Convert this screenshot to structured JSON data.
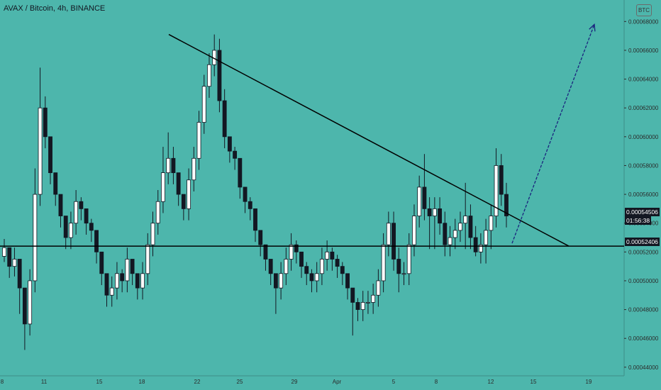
{
  "header": {
    "title": "AVAX / Bitcoin, 4h, BINANCE",
    "currency": "BTC"
  },
  "price_badges": {
    "current_price": "0.00054506",
    "countdown": "01:56:38",
    "support_price": "0.00052406"
  },
  "colors": {
    "background": "#4db6ac",
    "candle": "#131722",
    "trendline": "#000000",
    "arrow": "#1a237e",
    "label_bg": "#131722",
    "label_text": "#ffffff"
  },
  "chart_data": {
    "type": "candlestick",
    "symbol": "AVAX / Bitcoin",
    "timeframe": "4h",
    "exchange": "BINANCE",
    "y_ticks": [
      "0.00068000",
      "0.00066000",
      "0.00064000",
      "0.00062000",
      "0.00060000",
      "0.00058000",
      "0.00056000",
      "0.00054000",
      "0.00052000",
      "0.00050000",
      "0.00048000",
      "0.00046000",
      "0.00044000"
    ],
    "x_ticks": [
      "8",
      "11",
      "15",
      "18",
      "22",
      "25",
      "29",
      "Apr",
      "5",
      "8",
      "12",
      "15",
      "19"
    ],
    "ylim": [
      0.000435,
      0.00069
    ],
    "grid": false,
    "series": [
      {
        "name": "close",
        "values": [
          0.000523,
          0.00051,
          0.000515,
          0.000495,
          0.00047,
          0.0005,
          0.00056,
          0.00062,
          0.0006,
          0.000575,
          0.00056,
          0.000545,
          0.00053,
          0.00054,
          0.000555,
          0.00055,
          0.00054,
          0.000535,
          0.00052,
          0.000505,
          0.00049,
          0.000495,
          0.000505,
          0.0005,
          0.000515,
          0.000505,
          0.000495,
          0.000505,
          0.000525,
          0.00054,
          0.000555,
          0.000575,
          0.000585,
          0.000575,
          0.00056,
          0.00055,
          0.00057,
          0.000585,
          0.00061,
          0.000635,
          0.00065,
          0.00066,
          0.000625,
          0.0006,
          0.00059,
          0.000585,
          0.000565,
          0.000555,
          0.00055,
          0.000535,
          0.000525,
          0.000515,
          0.000505,
          0.000495,
          0.000505,
          0.000515,
          0.000525,
          0.00052,
          0.00051,
          0.000505,
          0.0005,
          0.000505,
          0.000515,
          0.00052,
          0.000515,
          0.00051,
          0.000505,
          0.000495,
          0.000485,
          0.00048,
          0.000485,
          0.000485,
          0.00049,
          0.0005,
          0.000525,
          0.00054,
          0.000515,
          0.000505,
          0.000505,
          0.000525,
          0.000545,
          0.000565,
          0.00055,
          0.000545,
          0.00055,
          0.00054,
          0.000525,
          0.00053,
          0.000535,
          0.00054,
          0.000545,
          0.00053,
          0.00052,
          0.000525,
          0.000535,
          0.000545,
          0.00058,
          0.00056,
          0.000545
        ],
        "highs": [
          0.000529,
          0.000518,
          0.000523,
          0.000503,
          0.000478,
          0.000508,
          0.000578,
          0.000648,
          0.000628,
          0.000583,
          0.000568,
          0.000553,
          0.000538,
          0.000548,
          0.000563,
          0.000558,
          0.000548,
          0.000543,
          0.000528,
          0.000513,
          0.000498,
          0.000503,
          0.000513,
          0.000508,
          0.000523,
          0.000513,
          0.000503,
          0.000513,
          0.000533,
          0.000548,
          0.000563,
          0.000593,
          0.000603,
          0.000593,
          0.000568,
          0.000558,
          0.000578,
          0.000593,
          0.000618,
          0.000643,
          0.000658,
          0.000671,
          0.000668,
          0.000633,
          0.000598,
          0.000593,
          0.000573,
          0.000563,
          0.000558,
          0.000543,
          0.000533,
          0.000523,
          0.000513,
          0.000503,
          0.000513,
          0.000523,
          0.000533,
          0.000528,
          0.000518,
          0.000513,
          0.000508,
          0.000513,
          0.000523,
          0.000528,
          0.000523,
          0.000518,
          0.000513,
          0.000503,
          0.000493,
          0.000488,
          0.000493,
          0.000493,
          0.000498,
          0.000508,
          0.000533,
          0.000548,
          0.000548,
          0.000523,
          0.000513,
          0.000533,
          0.000553,
          0.000573,
          0.000588,
          0.000558,
          0.000558,
          0.000558,
          0.000548,
          0.000538,
          0.000543,
          0.000548,
          0.000568,
          0.000553,
          0.000538,
          0.000533,
          0.000543,
          0.000553,
          0.000592,
          0.000588,
          0.000568
        ],
        "lows": [
          0.000513,
          0.000502,
          0.000503,
          0.000477,
          0.000452,
          0.000462,
          0.000492,
          0.000552,
          0.000592,
          0.000567,
          0.000552,
          0.000537,
          0.000522,
          0.000522,
          0.000532,
          0.000542,
          0.000532,
          0.000527,
          0.000512,
          0.000497,
          0.000482,
          0.000482,
          0.000487,
          0.000492,
          0.000492,
          0.000497,
          0.000487,
          0.000487,
          0.000497,
          0.000517,
          0.000532,
          0.000547,
          0.000567,
          0.000567,
          0.000552,
          0.000542,
          0.000542,
          0.000562,
          0.000577,
          0.000602,
          0.000627,
          0.000642,
          0.000617,
          0.000592,
          0.000582,
          0.000577,
          0.000557,
          0.000547,
          0.000542,
          0.000527,
          0.000517,
          0.000507,
          0.000497,
          0.000477,
          0.000487,
          0.000497,
          0.000507,
          0.000512,
          0.000502,
          0.000497,
          0.000492,
          0.000492,
          0.000497,
          0.000507,
          0.000507,
          0.000502,
          0.000497,
          0.000487,
          0.000462,
          0.000472,
          0.000472,
          0.000477,
          0.000477,
          0.000482,
          0.000492,
          0.000517,
          0.000507,
          0.000492,
          0.000497,
          0.000497,
          0.000517,
          0.000537,
          0.000542,
          0.000522,
          0.000522,
          0.000532,
          0.000517,
          0.000517,
          0.000522,
          0.000527,
          0.000522,
          0.000522,
          0.000517,
          0.000512,
          0.000512,
          0.000522,
          0.000537,
          0.000552,
          0.000537
        ]
      }
    ],
    "annotations": [
      {
        "type": "trendline",
        "from": [
          "18",
          0.000671
        ],
        "to": [
          "19",
          0.00052406
        ]
      },
      {
        "type": "horizontal_line",
        "value": 0.00052406
      },
      {
        "type": "arrow",
        "from": [
          "12",
          0.000526
        ],
        "to": [
          "19",
          0.000678
        ]
      }
    ]
  }
}
